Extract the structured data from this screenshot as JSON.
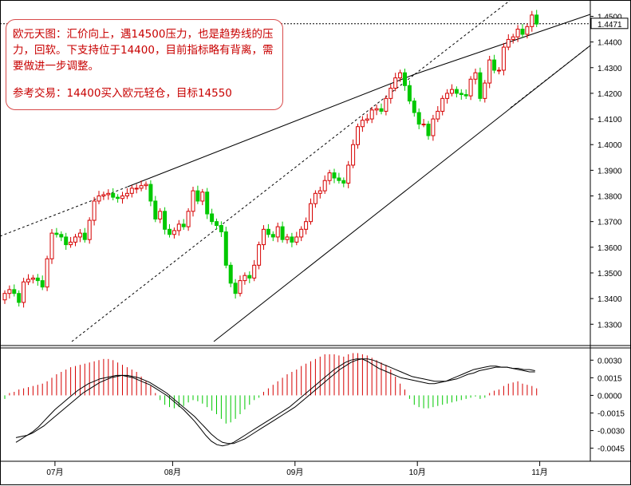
{
  "note": {
    "analysis": "欧元天图：汇价向上，遇14500压力，也是趋势线的压力，回软。下支持位于14400，目前指标略有背离，需要做进一步调整。",
    "advice": "参考交易：14400买入欧元轻仓，目标14550"
  },
  "colors": {
    "up": "#d60000",
    "down": "#00c800",
    "wick": "#000000",
    "grid": "#000000"
  },
  "chart_data": [
    {
      "type": "candlestick",
      "title": "",
      "x_labels": [
        "07月",
        "08月",
        "09月",
        "10月",
        "11月"
      ],
      "x_label_at_bar": [
        11,
        36,
        62,
        88,
        114
      ],
      "y_ticks": [
        1.33,
        1.34,
        1.35,
        1.36,
        1.37,
        1.38,
        1.39,
        1.4,
        1.41,
        1.42,
        1.43,
        1.44,
        1.45
      ],
      "y_tick_labels": [
        "1.3300",
        "1.3400",
        "1.3500",
        "1.3600",
        "1.3700",
        "1.3800",
        "1.3900",
        "1.4000",
        "1.4100",
        "1.4200",
        "1.4300",
        "1.4400",
        "1.4500"
      ],
      "ylim": [
        1.322,
        1.4545
      ],
      "current_price": 1.4471,
      "current_price_label": "1.4471",
      "resistance_level": 1.45,
      "close": [
        1.342,
        1.3435,
        1.342,
        1.3385,
        1.3465,
        1.3475,
        1.348,
        1.347,
        1.3445,
        1.3555,
        1.3655,
        1.365,
        1.364,
        1.361,
        1.362,
        1.364,
        1.3655,
        1.363,
        1.3705,
        1.378,
        1.38,
        1.3805,
        1.381,
        1.3795,
        1.379,
        1.38,
        1.381,
        1.383,
        1.383,
        1.384,
        1.3845,
        1.378,
        1.371,
        1.374,
        1.367,
        1.365,
        1.3665,
        1.369,
        1.368,
        1.374,
        1.382,
        1.378,
        1.3815,
        1.373,
        1.37,
        1.3685,
        1.366,
        1.353,
        1.346,
        1.342,
        1.347,
        1.349,
        1.348,
        1.353,
        1.361,
        1.367,
        1.365,
        1.364,
        1.368,
        1.363,
        1.364,
        1.362,
        1.364,
        1.367,
        1.37,
        1.377,
        1.381,
        1.382,
        1.386,
        1.389,
        1.387,
        1.386,
        1.385,
        1.392,
        1.4,
        1.407,
        1.4095,
        1.41,
        1.4135,
        1.414,
        1.413,
        1.418,
        1.422,
        1.426,
        1.428,
        1.423,
        1.417,
        1.4125,
        1.408,
        1.408,
        1.4035,
        1.41,
        1.413,
        1.418,
        1.42,
        1.4215,
        1.42,
        1.4195,
        1.419,
        1.4255,
        1.428,
        1.418,
        1.424,
        1.433,
        1.429,
        1.429,
        1.438,
        1.441,
        1.442,
        1.445,
        1.443,
        1.446,
        1.4505,
        1.447
      ],
      "open": [
        1.3395,
        1.342,
        1.3435,
        1.342,
        1.3385,
        1.3465,
        1.3475,
        1.348,
        1.347,
        1.3445,
        1.3555,
        1.3655,
        1.365,
        1.364,
        1.361,
        1.362,
        1.364,
        1.3655,
        1.363,
        1.3705,
        1.378,
        1.38,
        1.3805,
        1.381,
        1.3795,
        1.379,
        1.38,
        1.381,
        1.383,
        1.383,
        1.384,
        1.3845,
        1.378,
        1.371,
        1.374,
        1.367,
        1.365,
        1.3665,
        1.369,
        1.368,
        1.374,
        1.382,
        1.378,
        1.3815,
        1.373,
        1.37,
        1.3685,
        1.366,
        1.353,
        1.346,
        1.342,
        1.347,
        1.349,
        1.348,
        1.353,
        1.361,
        1.367,
        1.365,
        1.364,
        1.368,
        1.363,
        1.364,
        1.362,
        1.364,
        1.367,
        1.37,
        1.377,
        1.381,
        1.382,
        1.386,
        1.389,
        1.387,
        1.386,
        1.385,
        1.392,
        1.4,
        1.407,
        1.4095,
        1.41,
        1.4135,
        1.414,
        1.413,
        1.418,
        1.422,
        1.426,
        1.428,
        1.423,
        1.417,
        1.4125,
        1.408,
        1.408,
        1.4035,
        1.41,
        1.413,
        1.418,
        1.42,
        1.4215,
        1.42,
        1.4195,
        1.419,
        1.4255,
        1.428,
        1.418,
        1.424,
        1.433,
        1.429,
        1.429,
        1.438,
        1.441,
        1.442,
        1.445,
        1.443,
        1.446,
        1.4505
      ],
      "trendlines": "upper resistance line, parallel channel lines and a lower support line drawn across the candles"
    },
    {
      "type": "macd",
      "y_ticks": [
        0.003,
        0.0015,
        0.0,
        -0.0015,
        -0.003,
        -0.0045
      ],
      "y_tick_labels": [
        "0.0030",
        "0.0015",
        "0.0000",
        "-0.0015",
        "-0.0030",
        "-0.0045"
      ],
      "ylim": [
        -0.005,
        0.0037
      ],
      "histogram": [
        -0.0003,
        0.0002,
        0.0003,
        0.0005,
        0.0006,
        0.0007,
        0.0008,
        0.0009,
        0.001,
        0.0012,
        0.0015,
        0.0018,
        0.002,
        0.0022,
        0.0024,
        0.0025,
        0.0026,
        0.0027,
        0.0028,
        0.0029,
        0.003,
        0.0031,
        0.0031,
        0.003,
        0.0028,
        0.0026,
        0.0024,
        0.0022,
        0.002,
        0.0016,
        0.0012,
        0.0008,
        0.0002,
        -0.0004,
        -0.0008,
        -0.001,
        -0.0011,
        -0.001,
        -0.0009,
        -0.0006,
        -0.0004,
        -0.0005,
        -0.0007,
        -0.001,
        -0.0013,
        -0.0016,
        -0.002,
        -0.0024,
        -0.0023,
        -0.002,
        -0.0016,
        -0.0012,
        -0.0008,
        -0.0004,
        -0.0002,
        0.0003,
        0.0006,
        0.0009,
        0.0012,
        0.0015,
        0.0018,
        0.002,
        0.0022,
        0.0025,
        0.0027,
        0.0029,
        0.0031,
        0.0033,
        0.0035,
        0.0035,
        0.0035,
        0.0034,
        0.0033,
        0.0035,
        0.0036,
        0.0036,
        0.0035,
        0.0034,
        0.0032,
        0.003,
        0.0028,
        0.0026,
        0.0022,
        0.0016,
        0.001,
        0.0005,
        -0.0003,
        -0.0008,
        -0.001,
        -0.0011,
        -0.0011,
        -0.001,
        -0.0009,
        -0.0008,
        -0.0007,
        -0.0006,
        -0.0005,
        -0.0004,
        -0.0003,
        -0.0002,
        -0.0001,
        -0.0003,
        -0.0002,
        0.0002,
        0.0004,
        0.0005,
        0.0008,
        0.001,
        0.0011,
        0.0012,
        0.001,
        0.0009,
        0.0008,
        0.0006
      ],
      "macd": [
        -0.004,
        -0.0037,
        -0.0034,
        -0.0031,
        -0.0027,
        -0.0022,
        -0.0017,
        -0.0012,
        -0.0008,
        -0.0004,
        0.0,
        0.0004,
        0.0007,
        0.001,
        0.0012,
        0.0014,
        0.0015,
        0.0016,
        0.0017,
        0.0017,
        0.0016,
        0.0015,
        0.0013,
        0.0011,
        0.0009,
        0.0006,
        0.0003,
        0.0,
        -0.0004,
        -0.0008,
        -0.0012,
        -0.0017,
        -0.0022,
        -0.0028,
        -0.0034,
        -0.0039,
        -0.0042,
        -0.0043,
        -0.0042,
        -0.004,
        -0.0037,
        -0.0034,
        -0.0031,
        -0.0028,
        -0.0025,
        -0.0022,
        -0.0019,
        -0.0016,
        -0.0013,
        -0.001,
        -0.0006,
        -0.0002,
        0.0002,
        0.0006,
        0.001,
        0.0014,
        0.0018,
        0.0022,
        0.0025,
        0.0028,
        0.003,
        0.0031,
        0.0031,
        0.0029,
        0.0026,
        0.0023,
        0.0021,
        0.0019,
        0.0017,
        0.0015,
        0.0014,
        0.0013,
        0.0012,
        0.0011,
        0.001,
        0.001,
        0.0011,
        0.0012,
        0.0014,
        0.0016,
        0.0018,
        0.002,
        0.0022,
        0.0023,
        0.0024,
        0.0025,
        0.0025,
        0.0024,
        0.0024,
        0.0023,
        0.0022,
        0.0021,
        0.002,
        0.002
      ],
      "signal": [
        -0.0036,
        -0.0035,
        -0.0034,
        -0.0032,
        -0.0029,
        -0.0026,
        -0.0022,
        -0.0018,
        -0.0014,
        -0.001,
        -0.0006,
        -0.0002,
        0.0002,
        0.0005,
        0.0008,
        0.0011,
        0.0013,
        0.0015,
        0.0016,
        0.0017,
        0.0017,
        0.0016,
        0.0015,
        0.0013,
        0.0011,
        0.0008,
        0.0005,
        0.0002,
        -0.0002,
        -0.0006,
        -0.001,
        -0.0014,
        -0.0018,
        -0.0023,
        -0.0028,
        -0.0033,
        -0.0037,
        -0.004,
        -0.0041,
        -0.0041,
        -0.0039,
        -0.0037,
        -0.0034,
        -0.0031,
        -0.0028,
        -0.0025,
        -0.0022,
        -0.0019,
        -0.0016,
        -0.0013,
        -0.001,
        -0.0006,
        -0.0002,
        0.0002,
        0.0006,
        0.001,
        0.0014,
        0.0018,
        0.0022,
        0.0025,
        0.0028,
        0.003,
        0.0031,
        0.0031,
        0.003,
        0.0028,
        0.0026,
        0.0024,
        0.0022,
        0.002,
        0.0018,
        0.0016,
        0.0015,
        0.0014,
        0.0013,
        0.0012,
        0.0012,
        0.0012,
        0.0013,
        0.0014,
        0.0016,
        0.0018,
        0.0019,
        0.0021,
        0.0022,
        0.0023,
        0.0024,
        0.0024,
        0.0024,
        0.0023,
        0.0023,
        0.0022,
        0.0022,
        0.0021
      ]
    }
  ]
}
